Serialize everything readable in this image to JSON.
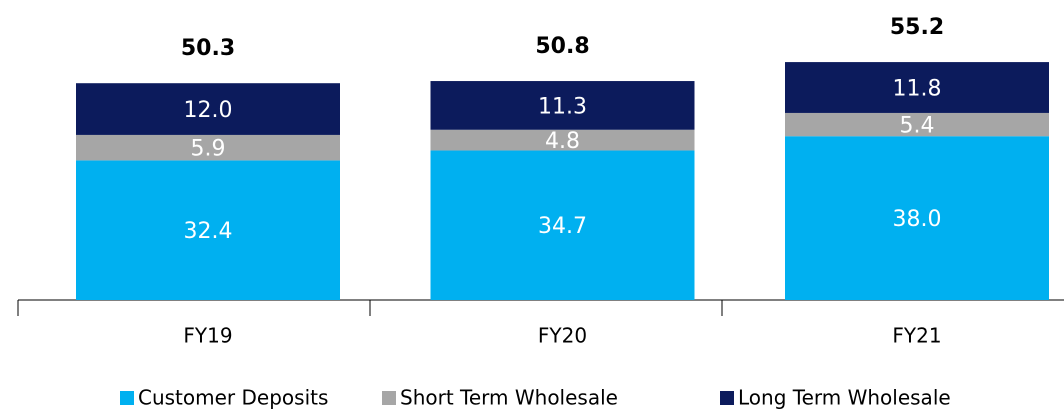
{
  "chart_data": {
    "type": "stacked-bar",
    "categories": [
      "FY19",
      "FY20",
      "FY21"
    ],
    "series": [
      {
        "name": "Customer Deposits",
        "color": "#00b0f0",
        "values": [
          32.4,
          34.7,
          38.0
        ],
        "value_labels": [
          "32.4",
          "34.7",
          "38.0"
        ]
      },
      {
        "name": "Short Term Wholesale",
        "color": "#a6a6a6",
        "values": [
          5.9,
          4.8,
          5.4
        ]
      },
      {
        "name": "Long Term Wholesale",
        "color": "#0c1b5c",
        "values": [
          12.0,
          11.3,
          11.8
        ],
        "value_labels": [
          "12.0",
          "11.3",
          "11.8"
        ]
      }
    ],
    "totals": [
      50.3,
      50.8,
      55.2
    ]
  }
}
